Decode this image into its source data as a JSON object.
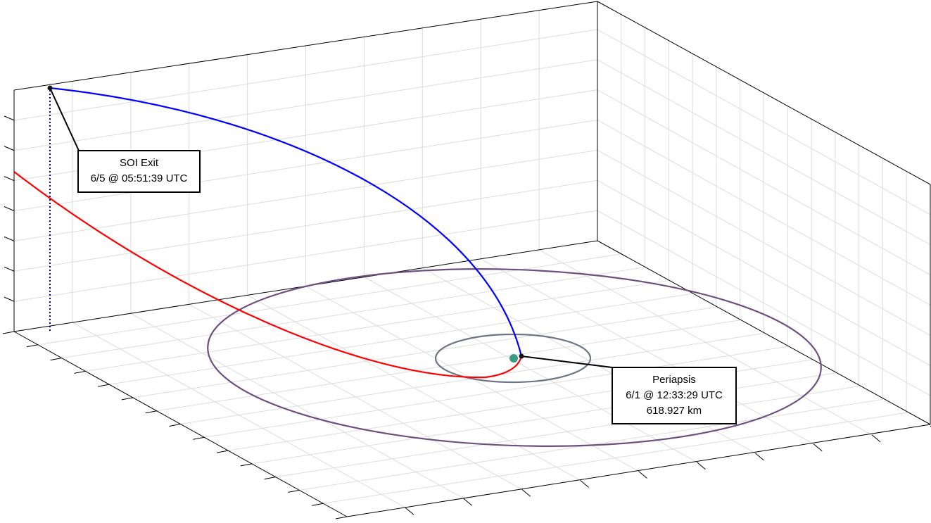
{
  "colors": {
    "departure_trajectory": "#0000ff",
    "arrival_trajectory": "#ff0000",
    "outer_orbit": "#6e4f82",
    "inner_orbit": "#6f7585",
    "central_body": "#3a9a86",
    "grid": "#dcdcdc",
    "axes": "#000000",
    "marker": "#111111"
  },
  "annotations": {
    "soi_exit": {
      "title": "SOI Exit",
      "time": "6/5 @ 05:51:39 UTC"
    },
    "periapsis": {
      "title": "Periapsis",
      "time": "6/1 @ 12:33:29 UTC",
      "altitude": "618.927 km"
    }
  }
}
